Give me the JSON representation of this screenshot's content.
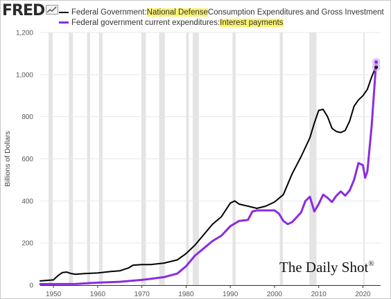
{
  "brand": {
    "name": "FRED"
  },
  "watermark": {
    "text": "The Daily Shot",
    "mark": "®"
  },
  "legend": [
    {
      "prefix": "Federal Government: ",
      "highlight": "National Defense",
      "suffix": " Consumption Expenditures and Gross Investment",
      "color": "#000000"
    },
    {
      "prefix": "Federal government current expenditures: ",
      "highlight": "Interest payments",
      "suffix": "",
      "color": "#8a2be2"
    }
  ],
  "colors": {
    "highlight": "#fbf270",
    "recession": "#e4e4e4",
    "grid": "#e8e8e8"
  },
  "chart_data": {
    "type": "line",
    "title": "",
    "xlabel": "",
    "ylabel": "Billions of Dollars",
    "xlim": [
      1947,
      2024
    ],
    "ylim": [
      0,
      1200
    ],
    "yticks": [
      {
        "value": 0,
        "label": "0"
      },
      {
        "value": 200,
        "label": "200"
      },
      {
        "value": 400,
        "label": "400"
      },
      {
        "value": 600,
        "label": "600"
      },
      {
        "value": 800,
        "label": "800"
      },
      {
        "value": 1000,
        "label": "1,000"
      },
      {
        "value": 1200,
        "label": "1,200"
      }
    ],
    "xticks": [
      {
        "value": 1950,
        "label": "1950"
      },
      {
        "value": 1960,
        "label": "1960"
      },
      {
        "value": 1970,
        "label": "1970"
      },
      {
        "value": 1980,
        "label": "1980"
      },
      {
        "value": 1990,
        "label": "1990"
      },
      {
        "value": 2000,
        "label": "2000"
      },
      {
        "value": 2010,
        "label": "2010"
      },
      {
        "value": 2020,
        "label": "2020"
      }
    ],
    "grid": "horizontal",
    "recessions": [
      [
        1948.9,
        1949.8
      ],
      [
        1953.5,
        1954.4
      ],
      [
        1957.6,
        1958.3
      ],
      [
        1960.3,
        1961.1
      ],
      [
        1969.9,
        1970.9
      ],
      [
        1973.9,
        1975.2
      ],
      [
        1980.0,
        1980.6
      ],
      [
        1981.5,
        1982.9
      ],
      [
        1990.5,
        1991.2
      ],
      [
        2001.2,
        2001.9
      ],
      [
        2007.9,
        2009.5
      ],
      [
        2020.1,
        2020.4
      ]
    ],
    "series": [
      {
        "color": "#000000",
        "x": [
          1947,
          1950,
          1951,
          1952,
          1953,
          1954,
          1955,
          1957,
          1960,
          1963,
          1965,
          1967,
          1968,
          1970,
          1972,
          1975,
          1978,
          1980,
          1982,
          1984,
          1986,
          1988,
          1990,
          1991,
          1992,
          1994,
          1996,
          1998,
          2000,
          2002,
          2004,
          2006,
          2008,
          2009,
          2010,
          2011,
          2012,
          2013,
          2014,
          2015,
          2016,
          2017,
          2018,
          2019,
          2020,
          2021,
          2022,
          2023
        ],
        "y": [
          20,
          25,
          45,
          60,
          62,
          55,
          52,
          55,
          58,
          65,
          68,
          82,
          95,
          98,
          98,
          105,
          120,
          150,
          190,
          240,
          290,
          325,
          390,
          400,
          385,
          375,
          365,
          375,
          395,
          430,
          530,
          610,
          700,
          770,
          830,
          835,
          800,
          745,
          730,
          725,
          735,
          780,
          850,
          880,
          900,
          930,
          990,
          1040
        ]
      },
      {
        "color": "#8a2be2",
        "x": [
          1947,
          1955,
          1960,
          1965,
          1970,
          1972,
          1975,
          1978,
          1980,
          1982,
          1984,
          1986,
          1988,
          1990,
          1992,
          1994,
          1995,
          1996,
          1998,
          2000,
          2001,
          2002,
          2003,
          2004,
          2006,
          2007,
          2008,
          2009,
          2010,
          2011,
          2012,
          2013,
          2014,
          2015,
          2016,
          2017,
          2018,
          2019,
          2020,
          2020.5,
          2021,
          2022,
          2023
        ],
        "y": [
          5,
          6,
          12,
          16,
          25,
          30,
          38,
          55,
          90,
          140,
          175,
          210,
          235,
          280,
          305,
          310,
          350,
          355,
          355,
          355,
          340,
          305,
          290,
          300,
          345,
          400,
          420,
          350,
          385,
          430,
          415,
          395,
          425,
          445,
          425,
          450,
          500,
          580,
          570,
          510,
          540,
          760,
          1060
        ]
      }
    ],
    "end_markers": [
      {
        "series": 0,
        "x": 2023,
        "y": 1035
      },
      {
        "series": 1,
        "x": 2023,
        "y": 1060
      }
    ]
  }
}
